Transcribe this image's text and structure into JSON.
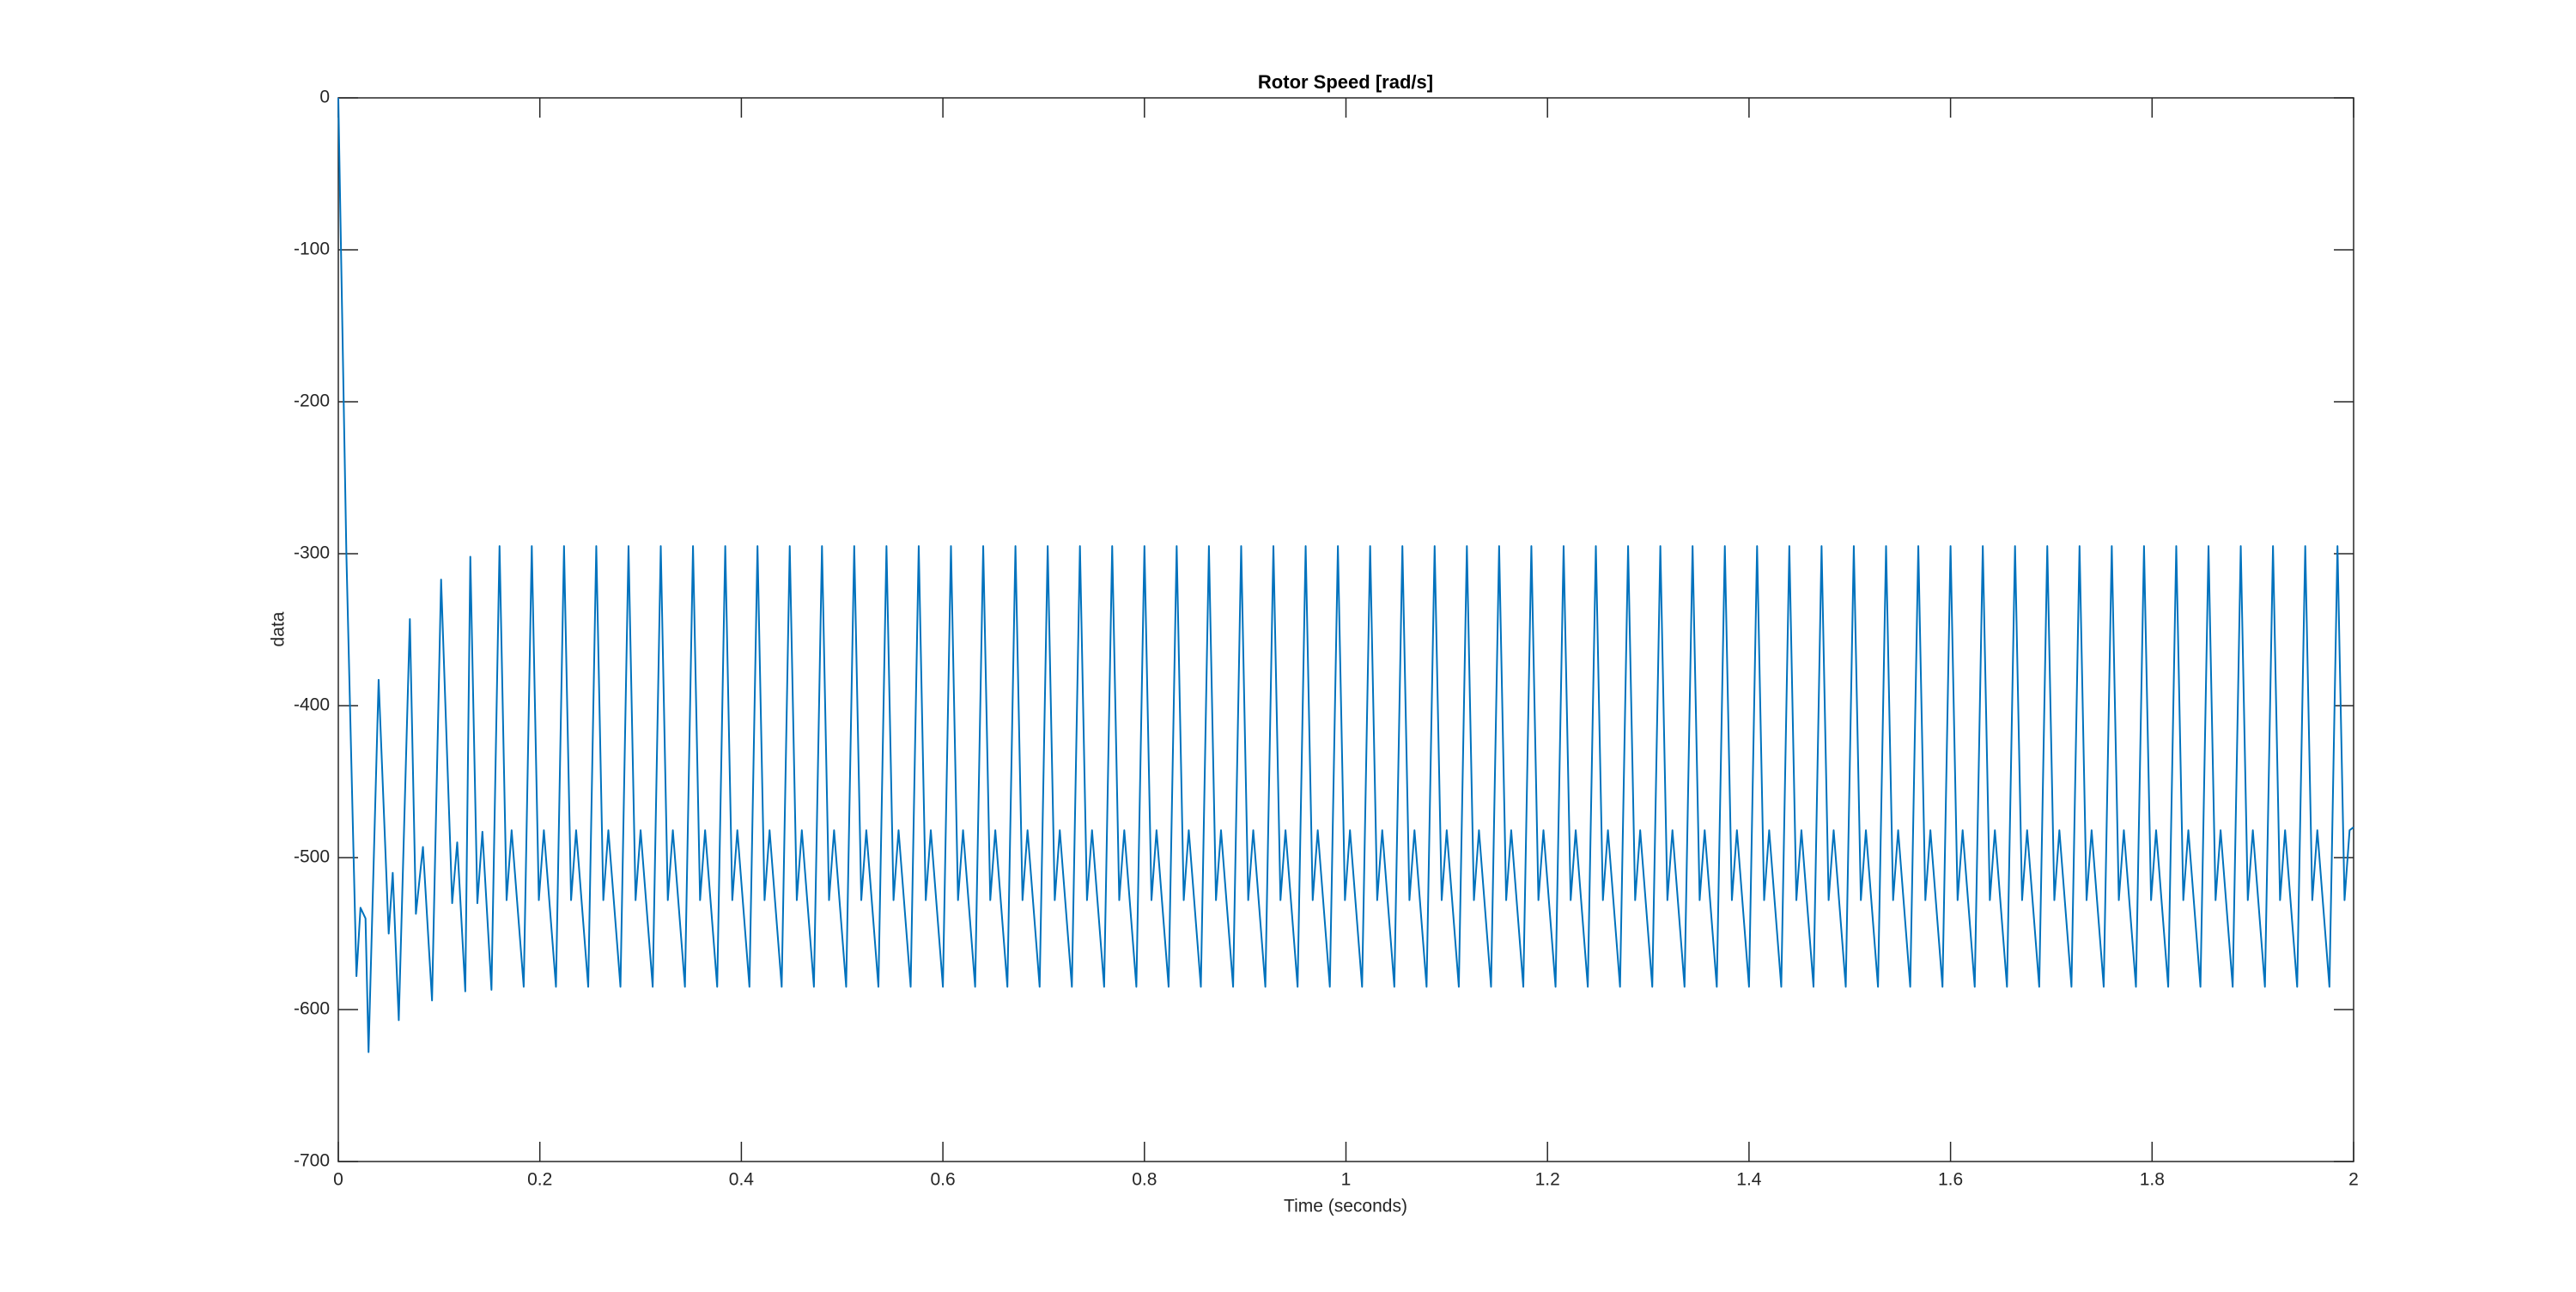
{
  "chart_data": {
    "type": "line",
    "title": "Rotor Speed [rad/s]",
    "x_label": "Time (seconds)",
    "y_label": "data",
    "color": "#0072bd",
    "xlim": [
      0,
      2
    ],
    "ylim": [
      -700,
      0
    ],
    "xticks": [
      0,
      0.2,
      0.4,
      0.6,
      0.8,
      1,
      1.2,
      1.4,
      1.6,
      1.8,
      2
    ],
    "yticks": [
      -700,
      -600,
      -500,
      -400,
      -300,
      -200,
      -100,
      0
    ],
    "grid": false,
    "x": [
      0,
      0.008,
      0.018,
      0.022,
      0.027,
      0.03,
      0.04,
      0.05,
      0.054,
      0.06,
      0.071,
      0.077,
      0.084,
      0.093,
      0.102,
      0.113,
      0.118,
      0.126,
      0.131,
      0.138,
      0.143,
      0.152,
      0.16,
      0.167,
      0.172,
      0.184,
      0.192,
      0.199,
      0.204,
      0.216,
      0.224,
      0.231,
      0.236,
      0.248,
      0.256,
      0.263,
      0.268,
      0.28,
      0.288,
      0.295,
      0.3,
      0.312,
      0.32,
      0.327,
      0.332,
      0.344,
      0.352,
      0.359,
      0.364,
      0.376,
      0.384,
      0.391,
      0.396,
      0.408,
      0.416,
      0.423,
      0.428,
      0.44,
      0.448,
      0.455,
      0.46,
      0.472,
      0.48,
      0.487,
      0.492,
      0.504,
      0.512,
      0.519,
      0.524,
      0.536,
      0.544,
      0.551,
      0.556,
      0.568,
      0.576,
      0.583,
      0.588,
      0.6,
      0.608,
      0.615,
      0.62,
      0.632,
      0.64,
      0.647,
      0.652,
      0.664,
      0.672,
      0.679,
      0.684,
      0.696,
      0.704,
      0.711,
      0.716,
      0.728,
      0.736,
      0.743,
      0.748,
      0.76,
      0.768,
      0.775,
      0.78,
      0.792,
      0.8,
      0.807,
      0.812,
      0.824,
      0.832,
      0.839,
      0.844,
      0.856,
      0.864,
      0.871,
      0.876,
      0.888,
      0.896,
      0.903,
      0.908,
      0.92,
      0.928,
      0.935,
      0.94,
      0.952,
      0.96,
      0.967,
      0.972,
      0.984,
      0.992,
      0.999,
      1.004,
      1.016,
      1.024,
      1.031,
      1.036,
      1.048,
      1.056,
      1.063,
      1.068,
      1.08,
      1.088,
      1.095,
      1.1,
      1.112,
      1.12,
      1.127,
      1.132,
      1.144,
      1.152,
      1.159,
      1.164,
      1.176,
      1.184,
      1.191,
      1.196,
      1.208,
      1.216,
      1.223,
      1.228,
      1.24,
      1.248,
      1.255,
      1.26,
      1.272,
      1.28,
      1.287,
      1.292,
      1.304,
      1.312,
      1.319,
      1.324,
      1.336,
      1.344,
      1.351,
      1.356,
      1.368,
      1.376,
      1.383,
      1.388,
      1.4,
      1.408,
      1.415,
      1.42,
      1.432,
      1.44,
      1.447,
      1.452,
      1.464,
      1.472,
      1.479,
      1.484,
      1.496,
      1.504,
      1.511,
      1.516,
      1.528,
      1.536,
      1.543,
      1.548,
      1.56,
      1.568,
      1.575,
      1.58,
      1.592,
      1.6,
      1.607,
      1.612,
      1.624,
      1.632,
      1.639,
      1.644,
      1.656,
      1.664,
      1.671,
      1.676,
      1.688,
      1.696,
      1.703,
      1.708,
      1.72,
      1.728,
      1.735,
      1.74,
      1.752,
      1.76,
      1.767,
      1.772,
      1.784,
      1.792,
      1.799,
      1.804,
      1.816,
      1.824,
      1.831,
      1.836,
      1.848,
      1.856,
      1.863,
      1.868,
      1.88,
      1.888,
      1.895,
      1.9,
      1.912,
      1.92,
      1.927,
      1.932,
      1.944,
      1.952,
      1.959,
      1.964,
      1.976,
      1.984,
      1.991,
      1.996,
      2.0
    ],
    "values": [
      0,
      -300,
      -578,
      -533,
      -540,
      -628,
      -383,
      -550,
      -510,
      -607,
      -343,
      -537,
      -493,
      -594,
      -317,
      -530,
      -490,
      -588,
      -302,
      -530,
      -483,
      -587,
      -295,
      -528,
      -482,
      -585,
      -295,
      -528,
      -482,
      -585,
      -295,
      -528,
      -482,
      -585,
      -295,
      -528,
      -482,
      -585,
      -295,
      -528,
      -482,
      -585,
      -295,
      -528,
      -482,
      -585,
      -295,
      -528,
      -482,
      -585,
      -295,
      -528,
      -482,
      -585,
      -295,
      -528,
      -482,
      -585,
      -295,
      -528,
      -482,
      -585,
      -295,
      -528,
      -482,
      -585,
      -295,
      -528,
      -482,
      -585,
      -295,
      -528,
      -482,
      -585,
      -295,
      -528,
      -482,
      -585,
      -295,
      -528,
      -482,
      -585,
      -295,
      -528,
      -482,
      -585,
      -295,
      -528,
      -482,
      -585,
      -295,
      -528,
      -482,
      -585,
      -295,
      -528,
      -482,
      -585,
      -295,
      -528,
      -482,
      -585,
      -295,
      -528,
      -482,
      -585,
      -295,
      -528,
      -482,
      -585,
      -295,
      -528,
      -482,
      -585,
      -295,
      -528,
      -482,
      -585,
      -295,
      -528,
      -482,
      -585,
      -295,
      -528,
      -482,
      -585,
      -295,
      -528,
      -482,
      -585,
      -295,
      -528,
      -482,
      -585,
      -295,
      -528,
      -482,
      -585,
      -295,
      -528,
      -482,
      -585,
      -295,
      -528,
      -482,
      -585,
      -295,
      -528,
      -482,
      -585,
      -295,
      -528,
      -482,
      -585,
      -295,
      -528,
      -482,
      -585,
      -295,
      -528,
      -482,
      -585,
      -295,
      -528,
      -482,
      -585,
      -295,
      -528,
      -482,
      -585,
      -295,
      -528,
      -482,
      -585,
      -295,
      -528,
      -482,
      -585,
      -295,
      -528,
      -482,
      -585,
      -295,
      -528,
      -482,
      -585,
      -295,
      -528,
      -482,
      -585,
      -295,
      -528,
      -482,
      -585,
      -295,
      -528,
      -482,
      -585,
      -295,
      -528,
      -482,
      -585,
      -295,
      -528,
      -482,
      -585,
      -295,
      -528,
      -482,
      -585,
      -295,
      -528,
      -482,
      -585,
      -295,
      -528,
      -482,
      -585,
      -295,
      -528,
      -482,
      -585,
      -295,
      -528,
      -482,
      -585,
      -295,
      -528,
      -482,
      -585,
      -295,
      -528,
      -482,
      -585,
      -295,
      -528,
      -482,
      -585,
      -295,
      -528,
      -482,
      -585,
      -295,
      -528,
      -482,
      -585,
      -295,
      -528,
      -482,
      -585,
      -295,
      -528,
      -482,
      -480
    ]
  }
}
